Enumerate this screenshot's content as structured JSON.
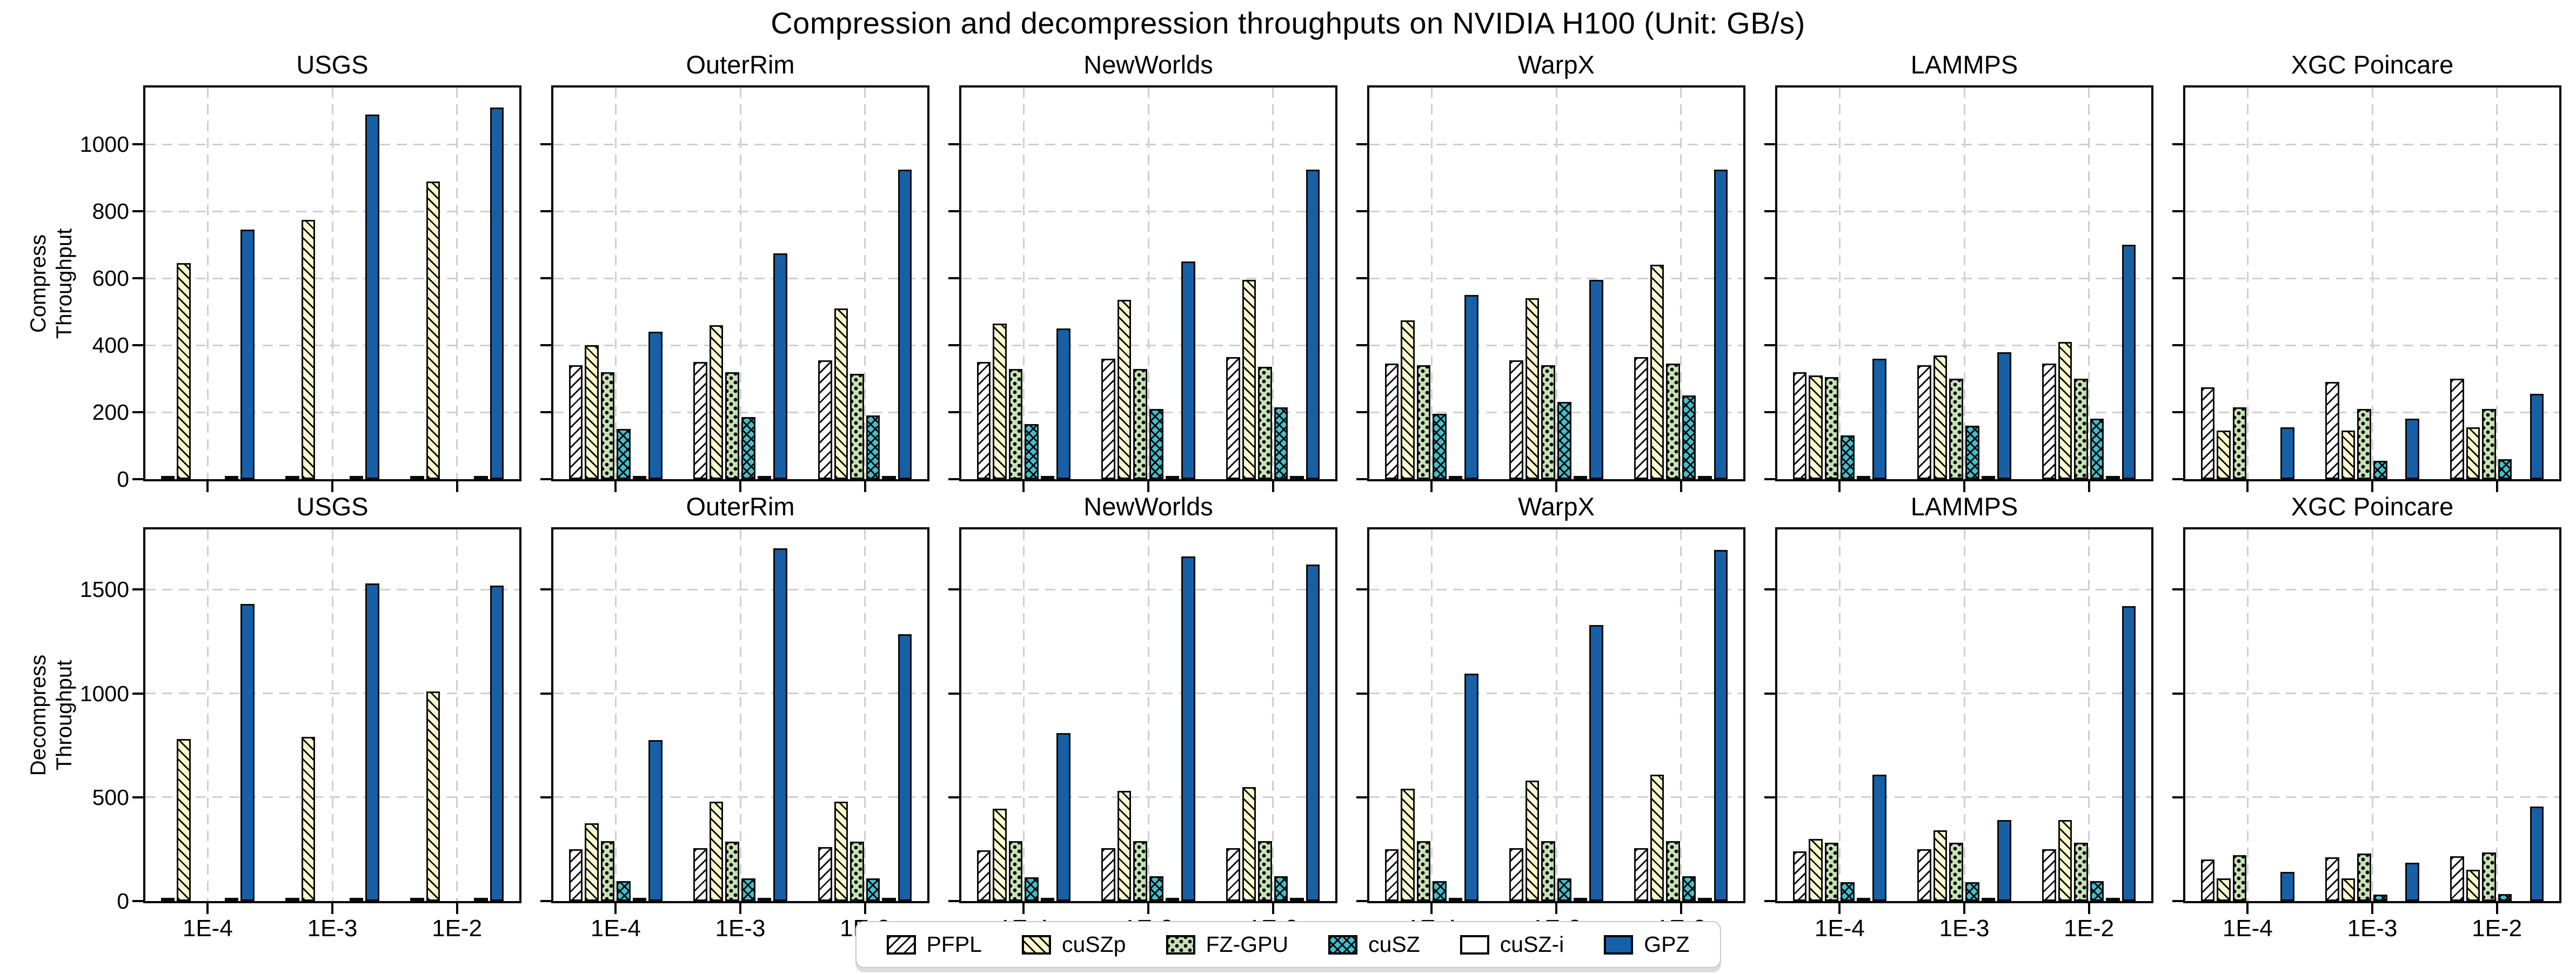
{
  "title": "Compression and decompression throughputs on NVIDIA H100 (Unit: GB/s)",
  "colors": {
    "grid": "#cfcfcf",
    "bar_edge": "#0a0a0a",
    "pfpl_white": "#ffffff",
    "cuszp_yellow": "#FBF8CE",
    "fzgpu_green": "#C6E3B5",
    "cusz_teal": "#41BFCC",
    "cuszi_white": "#ffffff",
    "gpz_blue": "#1660A8"
  },
  "legend": {
    "items": [
      {
        "label": "PFPL",
        "color": "#ffffff",
        "hatch": "forward-diagonal"
      },
      {
        "label": "cuSZp",
        "color": "#FBF8CE",
        "hatch": "back-diagonal"
      },
      {
        "label": "FZ-GPU",
        "color": "#C6E3B5",
        "hatch": "dots"
      },
      {
        "label": "cuSZ",
        "color": "#41BFCC",
        "hatch": "cross"
      },
      {
        "label": "cuSZ-i",
        "color": "#ffffff",
        "hatch": "none"
      },
      {
        "label": "GPZ",
        "color": "#1660A8",
        "hatch": "solid"
      }
    ]
  },
  "chart_data": [
    {
      "type": "bar",
      "row": "compress",
      "ylabel_lines": [
        "Compress",
        "Throughput"
      ],
      "ylim": [
        0,
        1170
      ],
      "yticks": [
        0,
        200,
        400,
        600,
        800,
        1000
      ],
      "categories": [
        "1E-4",
        "1E-3",
        "1E-2"
      ],
      "show_xtick_labels": false,
      "grid": true,
      "panels": [
        {
          "title": "USGS",
          "series": [
            {
              "name": "PFPL",
              "values": [
                6,
                6,
                6
              ]
            },
            {
              "name": "cuSZp",
              "values": [
                645,
                775,
                890
              ]
            },
            {
              "name": "FZ-GPU",
              "values": [
                0,
                0,
                0
              ]
            },
            {
              "name": "cuSZ",
              "values": [
                0,
                0,
                0
              ]
            },
            {
              "name": "cuSZ-i",
              "values": [
                5,
                5,
                5
              ]
            },
            {
              "name": "GPZ",
              "values": [
                745,
                1090,
                1110
              ]
            }
          ]
        },
        {
          "title": "OuterRim",
          "series": [
            {
              "name": "PFPL",
              "values": [
                340,
                350,
                355
              ]
            },
            {
              "name": "cuSZp",
              "values": [
                400,
                460,
                510
              ]
            },
            {
              "name": "FZ-GPU",
              "values": [
                320,
                320,
                315
              ]
            },
            {
              "name": "cuSZ",
              "values": [
                150,
                185,
                190
              ]
            },
            {
              "name": "cuSZ-i",
              "values": [
                5,
                5,
                5
              ]
            },
            {
              "name": "GPZ",
              "values": [
                440,
                675,
                925
              ]
            }
          ]
        },
        {
          "title": "NewWorlds",
          "series": [
            {
              "name": "PFPL",
              "values": [
                350,
                360,
                365
              ]
            },
            {
              "name": "cuSZp",
              "values": [
                465,
                535,
                595
              ]
            },
            {
              "name": "FZ-GPU",
              "values": [
                330,
                330,
                335
              ]
            },
            {
              "name": "cuSZ",
              "values": [
                165,
                210,
                215
              ]
            },
            {
              "name": "cuSZ-i",
              "values": [
                5,
                5,
                5
              ]
            },
            {
              "name": "GPZ",
              "values": [
                450,
                650,
                925
              ]
            }
          ]
        },
        {
          "title": "WarpX",
          "series": [
            {
              "name": "PFPL",
              "values": [
                345,
                355,
                365
              ]
            },
            {
              "name": "cuSZp",
              "values": [
                475,
                540,
                640
              ]
            },
            {
              "name": "FZ-GPU",
              "values": [
                340,
                340,
                345
              ]
            },
            {
              "name": "cuSZ",
              "values": [
                195,
                230,
                250
              ]
            },
            {
              "name": "cuSZ-i",
              "values": [
                5,
                5,
                10
              ]
            },
            {
              "name": "GPZ",
              "values": [
                550,
                595,
                925
              ]
            }
          ]
        },
        {
          "title": "LAMMPS",
          "series": [
            {
              "name": "PFPL",
              "values": [
                320,
                340,
                345
              ]
            },
            {
              "name": "cuSZp",
              "values": [
                310,
                370,
                410
              ]
            },
            {
              "name": "FZ-GPU",
              "values": [
                305,
                300,
                300
              ]
            },
            {
              "name": "cuSZ",
              "values": [
                130,
                160,
                180
              ]
            },
            {
              "name": "cuSZ-i",
              "values": [
                5,
                5,
                10
              ]
            },
            {
              "name": "GPZ",
              "values": [
                360,
                380,
                700
              ]
            }
          ]
        },
        {
          "title": "XGC Poincare",
          "series": [
            {
              "name": "PFPL",
              "values": [
                275,
                290,
                300
              ]
            },
            {
              "name": "cuSZp",
              "values": [
                145,
                145,
                155
              ]
            },
            {
              "name": "FZ-GPU",
              "values": [
                215,
                210,
                210
              ]
            },
            {
              "name": "cuSZ",
              "values": [
                0,
                55,
                60
              ]
            },
            {
              "name": "cuSZ-i",
              "values": [
                0,
                0,
                0
              ]
            },
            {
              "name": "GPZ",
              "values": [
                155,
                180,
                255
              ]
            }
          ]
        }
      ]
    },
    {
      "type": "bar",
      "row": "decompress",
      "ylabel_lines": [
        "Decompress",
        "Throughput"
      ],
      "ylim": [
        0,
        1790
      ],
      "yticks": [
        0,
        500,
        1000,
        1500
      ],
      "categories": [
        "1E-4",
        "1E-3",
        "1E-2"
      ],
      "show_xtick_labels": true,
      "grid": true,
      "panels": [
        {
          "title": "USGS",
          "series": [
            {
              "name": "PFPL",
              "values": [
                7,
                7,
                7
              ]
            },
            {
              "name": "cuSZp",
              "values": [
                780,
                790,
                1010
              ]
            },
            {
              "name": "FZ-GPU",
              "values": [
                0,
                0,
                0
              ]
            },
            {
              "name": "cuSZ",
              "values": [
                0,
                0,
                0
              ]
            },
            {
              "name": "cuSZ-i",
              "values": [
                5,
                5,
                5
              ]
            },
            {
              "name": "GPZ",
              "values": [
                1430,
                1530,
                1520
              ]
            }
          ]
        },
        {
          "title": "OuterRim",
          "series": [
            {
              "name": "PFPL",
              "values": [
                250,
                255,
                260
              ]
            },
            {
              "name": "cuSZp",
              "values": [
                375,
                480,
                480
              ]
            },
            {
              "name": "FZ-GPU",
              "values": [
                290,
                285,
                285
              ]
            },
            {
              "name": "cuSZ",
              "values": [
                95,
                110,
                110
              ]
            },
            {
              "name": "cuSZ-i",
              "values": [
                5,
                5,
                5
              ]
            },
            {
              "name": "GPZ",
              "values": [
                775,
                1700,
                1285
              ]
            }
          ]
        },
        {
          "title": "NewWorlds",
          "series": [
            {
              "name": "PFPL",
              "values": [
                245,
                255,
                255
              ]
            },
            {
              "name": "cuSZp",
              "values": [
                445,
                530,
                550
              ]
            },
            {
              "name": "FZ-GPU",
              "values": [
                290,
                290,
                290
              ]
            },
            {
              "name": "cuSZ",
              "values": [
                115,
                120,
                120
              ]
            },
            {
              "name": "cuSZ-i",
              "values": [
                5,
                5,
                5
              ]
            },
            {
              "name": "GPZ",
              "values": [
                810,
                1660,
                1620
              ]
            }
          ]
        },
        {
          "title": "WarpX",
          "series": [
            {
              "name": "PFPL",
              "values": [
                250,
                255,
                255
              ]
            },
            {
              "name": "cuSZp",
              "values": [
                540,
                580,
                610
              ]
            },
            {
              "name": "FZ-GPU",
              "values": [
                290,
                290,
                290
              ]
            },
            {
              "name": "cuSZ",
              "values": [
                95,
                110,
                120
              ]
            },
            {
              "name": "cuSZ-i",
              "values": [
                5,
                5,
                10
              ]
            },
            {
              "name": "GPZ",
              "values": [
                1095,
                1330,
                1690
              ]
            }
          ]
        },
        {
          "title": "LAMMPS",
          "series": [
            {
              "name": "PFPL",
              "values": [
                240,
                250,
                250
              ]
            },
            {
              "name": "cuSZp",
              "values": [
                300,
                340,
                390
              ]
            },
            {
              "name": "FZ-GPU",
              "values": [
                280,
                280,
                280
              ]
            },
            {
              "name": "cuSZ",
              "values": [
                90,
                90,
                95
              ]
            },
            {
              "name": "cuSZ-i",
              "values": [
                5,
                5,
                10
              ]
            },
            {
              "name": "GPZ",
              "values": [
                610,
                390,
                1420
              ]
            }
          ]
        },
        {
          "title": "XGC Poincare",
          "series": [
            {
              "name": "PFPL",
              "values": [
                200,
                210,
                215
              ]
            },
            {
              "name": "cuSZp",
              "values": [
                110,
                110,
                150
              ]
            },
            {
              "name": "FZ-GPU",
              "values": [
                220,
                230,
                235
              ]
            },
            {
              "name": "cuSZ",
              "values": [
                0,
                30,
                35
              ]
            },
            {
              "name": "cuSZ-i",
              "values": [
                0,
                0,
                0
              ]
            },
            {
              "name": "GPZ",
              "values": [
                140,
                185,
                455
              ]
            }
          ]
        }
      ]
    }
  ]
}
